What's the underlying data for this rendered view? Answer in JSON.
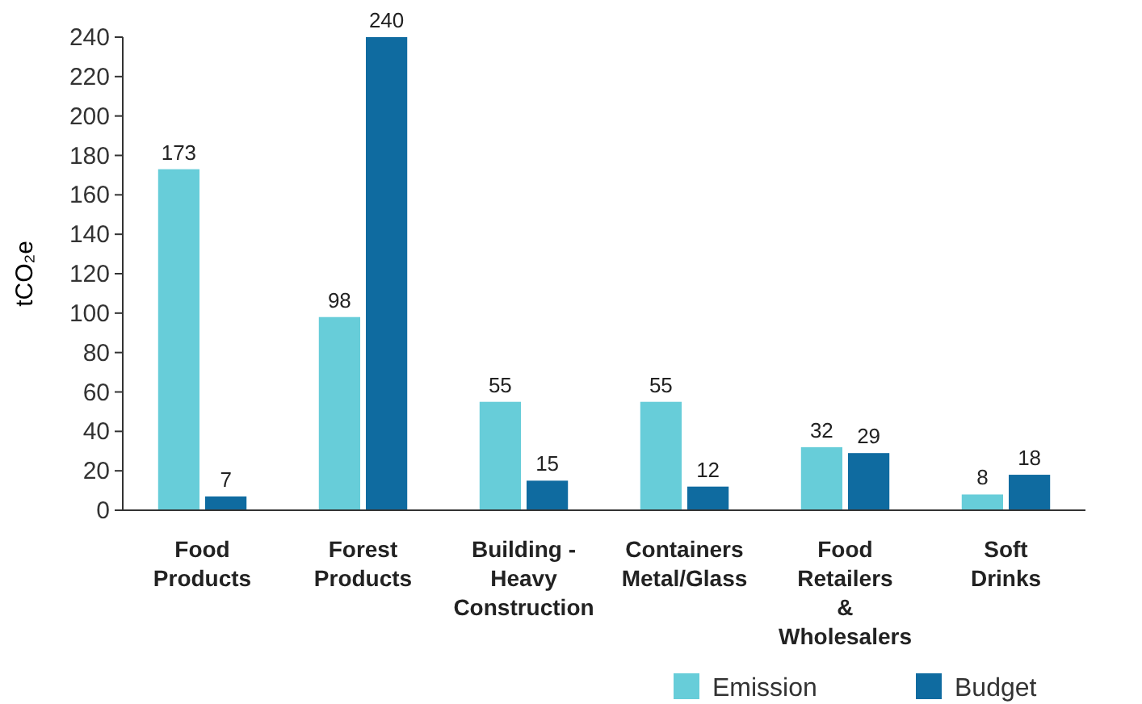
{
  "chart_data": {
    "type": "bar",
    "ylabel": "tCO₂e",
    "categories": [
      "Food Products",
      "Forest Products",
      "Building - Heavy Construction",
      "Containers Metal/Glass",
      "Food Retailers & Wholesalers",
      "Soft Drinks"
    ],
    "series": [
      {
        "name": "Emission",
        "color": "#67cdd9",
        "values": [
          173,
          98,
          55,
          55,
          32,
          8
        ]
      },
      {
        "name": "Budget",
        "color": "#0f6ba0",
        "values": [
          7,
          240,
          15,
          12,
          29,
          18
        ]
      }
    ],
    "ylim": [
      0,
      240
    ],
    "yticks": [
      0,
      20,
      40,
      60,
      80,
      100,
      120,
      140,
      160,
      180,
      200,
      220,
      240
    ],
    "data_labels": true,
    "grid": false,
    "legend": "bottom right"
  }
}
